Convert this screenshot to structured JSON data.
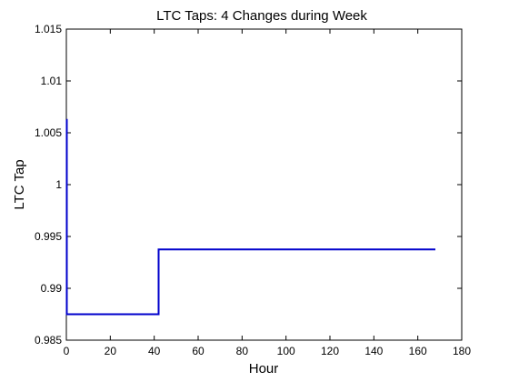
{
  "chart_data": {
    "type": "line",
    "title": "LTC Taps: 4 Changes during Week",
    "xlabel": "Hour",
    "ylabel": "LTC Tap",
    "xlim": [
      0,
      180
    ],
    "ylim": [
      0.985,
      1.015
    ],
    "xticks": [
      "0",
      "20",
      "40",
      "60",
      "80",
      "100",
      "120",
      "140",
      "160",
      "180"
    ],
    "yticks": [
      "0.985",
      "0.99",
      "0.995",
      "1",
      "1.005",
      "1.01",
      "1.015"
    ],
    "grid": false,
    "line_style": "step",
    "colors": {
      "series": "#0000cc",
      "axes": "#000000",
      "background": "#ffffff"
    },
    "series": [
      {
        "x": [
          0,
          0.2,
          0.2,
          42,
          42,
          168
        ],
        "y": [
          1.00625,
          1.00625,
          0.9875,
          0.9875,
          0.99375,
          0.99375
        ]
      }
    ]
  }
}
